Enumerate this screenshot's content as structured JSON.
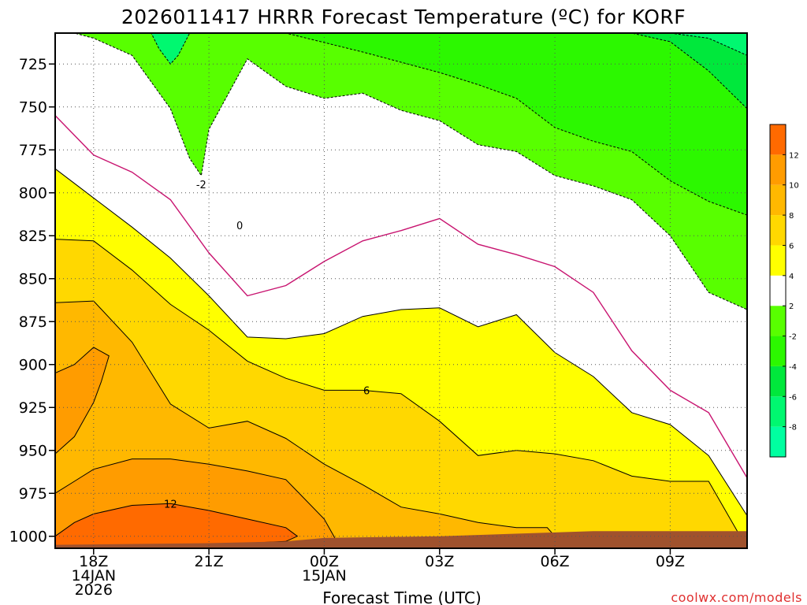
{
  "chart_data": {
    "type": "heatmap",
    "title": "2026011417 HRRR Forecast Temperature (ºC) for KORF",
    "xlabel": "Forecast Time (UTC)",
    "ylabel": "",
    "y_axis": {
      "units": "hPa",
      "range": [
        1007,
        707
      ],
      "inverted": true,
      "ticks": [
        725,
        750,
        775,
        800,
        825,
        850,
        875,
        900,
        925,
        950,
        975,
        1000
      ]
    },
    "x_axis": {
      "units": "hours since 2026-01-14 17Z",
      "range": [
        0,
        18
      ],
      "grid": "dotted",
      "ticks": [
        {
          "t": 1,
          "line1": "18Z",
          "line2": "14JAN",
          "line3": "2026"
        },
        {
          "t": 4,
          "line1": "21Z",
          "line2": "",
          "line3": ""
        },
        {
          "t": 7,
          "line1": "00Z",
          "line2": "15JAN",
          "line3": ""
        },
        {
          "t": 10,
          "line1": "03Z",
          "line2": "",
          "line3": ""
        },
        {
          "t": 13,
          "line1": "06Z",
          "line2": "",
          "line3": ""
        },
        {
          "t": 16,
          "line1": "09Z",
          "line2": "",
          "line3": ""
        }
      ]
    },
    "colorbar": {
      "levels": [
        -10,
        -8,
        -6,
        -4,
        -2,
        2,
        4,
        6,
        8,
        10,
        12,
        14
      ],
      "tick_labels": [
        "-8",
        "-6",
        "-4",
        "-2",
        "2",
        "4",
        "6",
        "8",
        "10",
        "12"
      ],
      "colors": [
        "#00ffa0",
        "#00f870",
        "#00e83c",
        "#2cf800",
        "#58ff00",
        "#ffffff",
        "#ffff00",
        "#ffd800",
        "#ffb800",
        "#ff9c00",
        "#ff6a00"
      ]
    },
    "regions": [
      {
        "level": -2,
        "points": [
          [
            0,
            707
          ],
          [
            18,
            707
          ],
          [
            18,
            868
          ],
          [
            17,
            858
          ],
          [
            16,
            825
          ],
          [
            15,
            804
          ],
          [
            14,
            796
          ],
          [
            13,
            790
          ],
          [
            12,
            776
          ],
          [
            11,
            772
          ],
          [
            10,
            758
          ],
          [
            9,
            752
          ],
          [
            8,
            742
          ],
          [
            7,
            745
          ],
          [
            6,
            738
          ],
          [
            5,
            722
          ],
          [
            4,
            763
          ],
          [
            3.8,
            790
          ],
          [
            3.5,
            780
          ],
          [
            3,
            751
          ],
          [
            2,
            720
          ],
          [
            1,
            710
          ],
          [
            0.5,
            707
          ]
        ]
      },
      {
        "level": -4,
        "points": [
          [
            1,
            707
          ],
          [
            18,
            707
          ],
          [
            18,
            813
          ],
          [
            17,
            805
          ],
          [
            16,
            793
          ],
          [
            15,
            776
          ],
          [
            14,
            770
          ],
          [
            13,
            762
          ],
          [
            12,
            745
          ],
          [
            11,
            737
          ],
          [
            10,
            730
          ],
          [
            8,
            718
          ],
          [
            6,
            707
          ],
          [
            5,
            707
          ]
        ]
      },
      {
        "level": -6,
        "points": [
          [
            9,
            707
          ],
          [
            18,
            707
          ],
          [
            18,
            751
          ],
          [
            17,
            729
          ],
          [
            16,
            712
          ],
          [
            15,
            707
          ]
        ]
      },
      {
        "level": -8,
        "points": [
          [
            16,
            707
          ],
          [
            18,
            707
          ],
          [
            18,
            720
          ],
          [
            17,
            710
          ]
        ]
      },
      {
        "level": -8,
        "points": [
          [
            2.5,
            707
          ],
          [
            3.5,
            707
          ],
          [
            3.2,
            720
          ],
          [
            3,
            725
          ],
          [
            2.7,
            716
          ]
        ]
      },
      {
        "level": 2,
        "points": [
          [
            0,
            755
          ],
          [
            1,
            778
          ],
          [
            2,
            788
          ],
          [
            3,
            804
          ],
          [
            4,
            835
          ],
          [
            5,
            860
          ],
          [
            6,
            854
          ],
          [
            7,
            840
          ],
          [
            8,
            828
          ],
          [
            9,
            822
          ],
          [
            10,
            815
          ],
          [
            11,
            830
          ],
          [
            12,
            836
          ],
          [
            13,
            843
          ],
          [
            14,
            858
          ],
          [
            15,
            892
          ],
          [
            16,
            915
          ],
          [
            17,
            928
          ],
          [
            18,
            966
          ],
          [
            18,
            1007
          ],
          [
            0,
            1007
          ]
        ]
      },
      {
        "level": 4,
        "points": [
          [
            0,
            786
          ],
          [
            1,
            803
          ],
          [
            2,
            820
          ],
          [
            3,
            838
          ],
          [
            4,
            860
          ],
          [
            5,
            884
          ],
          [
            6,
            885
          ],
          [
            7,
            882
          ],
          [
            8,
            872
          ],
          [
            9,
            868
          ],
          [
            10,
            867
          ],
          [
            11,
            878
          ],
          [
            12,
            871
          ],
          [
            13,
            893
          ],
          [
            14,
            907
          ],
          [
            15,
            928
          ],
          [
            16,
            935
          ],
          [
            17,
            953
          ],
          [
            18,
            988
          ],
          [
            18,
            1007
          ],
          [
            0,
            1007
          ]
        ]
      },
      {
        "level": 6,
        "points": [
          [
            0,
            827
          ],
          [
            1,
            828
          ],
          [
            2,
            845
          ],
          [
            3,
            865
          ],
          [
            4,
            880
          ],
          [
            5,
            898
          ],
          [
            6,
            908
          ],
          [
            7,
            915
          ],
          [
            8,
            915
          ],
          [
            9,
            917
          ],
          [
            10,
            933
          ],
          [
            11,
            953
          ],
          [
            12,
            950
          ],
          [
            13,
            952
          ],
          [
            14,
            956
          ],
          [
            15,
            965
          ],
          [
            16,
            968
          ],
          [
            17,
            968
          ],
          [
            18,
            1007
          ],
          [
            0,
            1007
          ]
        ]
      },
      {
        "level": 8,
        "points": [
          [
            0,
            864
          ],
          [
            1,
            863
          ],
          [
            2,
            887
          ],
          [
            3,
            923
          ],
          [
            4,
            937
          ],
          [
            5,
            933
          ],
          [
            6,
            943
          ],
          [
            7,
            958
          ],
          [
            8,
            970
          ],
          [
            9,
            983
          ],
          [
            10,
            987
          ],
          [
            11,
            992
          ],
          [
            12,
            995
          ],
          [
            12.8,
            995
          ],
          [
            13,
            1000
          ],
          [
            13.1,
            1007
          ],
          [
            0,
            1007
          ]
        ]
      },
      {
        "level": 10,
        "points": [
          [
            0,
            952
          ],
          [
            0.5,
            942
          ],
          [
            1,
            922
          ],
          [
            1.2,
            910
          ],
          [
            1.4,
            895
          ],
          [
            1,
            890
          ],
          [
            0.5,
            900
          ],
          [
            0,
            905
          ],
          [
            0,
            975
          ],
          [
            0.5,
            968
          ],
          [
            1,
            961
          ],
          [
            2,
            955
          ],
          [
            3,
            955
          ],
          [
            4,
            958
          ],
          [
            5,
            962
          ],
          [
            6,
            967
          ],
          [
            7,
            990
          ],
          [
            7.2,
            998
          ],
          [
            7.3,
            1002
          ],
          [
            7.2,
            1007
          ],
          [
            0,
            1007
          ]
        ]
      },
      {
        "level": 12,
        "points": [
          [
            0,
            1000
          ],
          [
            0.5,
            992
          ],
          [
            1,
            987
          ],
          [
            2,
            982
          ],
          [
            3,
            981
          ],
          [
            4,
            985
          ],
          [
            5,
            990
          ],
          [
            6,
            995
          ],
          [
            6.3,
            1000
          ],
          [
            6,
            1003
          ],
          [
            5,
            1004
          ],
          [
            4,
            1005
          ],
          [
            3,
            1006
          ],
          [
            2,
            1006
          ],
          [
            1,
            1006
          ],
          [
            0,
            1006
          ]
        ]
      }
    ],
    "contour_labels": [
      {
        "text": "-2",
        "t": 3.8,
        "p": 795
      },
      {
        "text": "0",
        "t": 4.8,
        "p": 819
      },
      {
        "text": "6",
        "t": 8.1,
        "p": 915
      },
      {
        "text": "12",
        "t": 3.0,
        "p": 981
      }
    ],
    "ground": {
      "color": "#a0522d",
      "points": [
        [
          0,
          1005
        ],
        [
          4,
          1004
        ],
        [
          6,
          1003
        ],
        [
          7,
          1001
        ],
        [
          10,
          1000
        ],
        [
          14,
          997
        ],
        [
          18,
          997
        ],
        [
          18,
          1007
        ],
        [
          0,
          1007
        ]
      ]
    }
  },
  "credit": "coolwx.com/models"
}
